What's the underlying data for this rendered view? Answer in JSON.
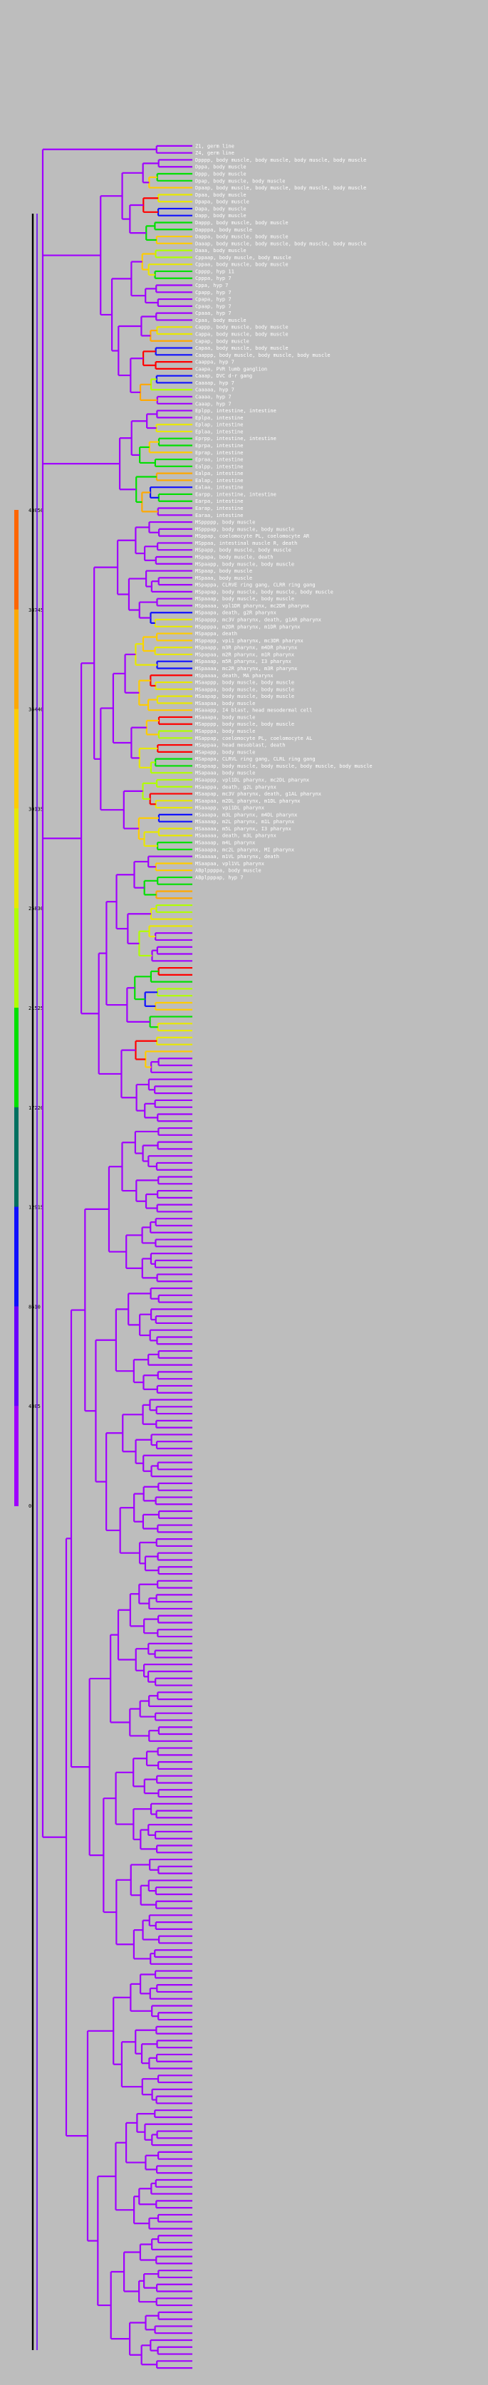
{
  "color_scale": {
    "ticks": [
      "43050",
      "38745",
      "34440",
      "30135",
      "25830",
      "21525",
      "17220",
      "12915",
      "8610",
      "4305",
      "0"
    ],
    "colors": [
      "#ff6600",
      "#ffa800",
      "#ffcc00",
      "#e8e800",
      "#b0ff00",
      "#00e000",
      "#007060",
      "#1010ff",
      "#6a00ff",
      "#a000ff",
      "#b020ff"
    ]
  },
  "leaves": [
    "Z1, germ line",
    "Z4, germ line",
    "Dpppp, body muscle, body muscle, body muscle, body muscle",
    "Dppa, body muscle",
    "Dppp, body muscle",
    "Dpap, body muscle, body muscle",
    "Dpaap, body muscle, body muscle, body muscle, body muscle",
    "Dpaa, body muscle",
    "Dpapa, body muscle",
    "Dapa, body muscle",
    "Dapp, body muscle",
    "Dappp, body muscle, body muscle",
    "Dapppa, body muscle",
    "Dappa, body muscle, body muscle",
    "Daaap, body muscle, body muscle, body muscle, body muscle",
    "Daaa, body muscle",
    "Cppaap, body muscle, body muscle",
    "Cppaa, body muscle, body muscle",
    "Cpppp, hyp 11",
    "Cpppa, hyp 7",
    "Cppa, hyp 7",
    "Cpapp, hyp 7",
    "Cpapa, hyp 7",
    "Cpaap, hyp 7",
    "Cpaaa, hyp 7",
    "Cpaa, body muscle",
    "Cappp, body muscle, body muscle",
    "Cappa, body muscle, body muscle",
    "Capap, body muscle",
    "Capaa, body muscle, body muscle",
    "Caappp, body muscle, body muscle, body muscle",
    "Caappa, hyp 7",
    "Caapa, PVR lumb ganglion",
    "Caaap, DVC d-r gang",
    "Caaaap, hyp 7",
    "Caaaaa, hyp 7",
    "Caaaa, hyp 7",
    "Caaap, hyp 7",
    "Eplpp, intestine, intestine",
    "Eplpa, intestine",
    "Eplap, intestine",
    "Eplaa, intestine",
    "Eprpp, intestine, intestine",
    "Eprpa, intestine",
    "Eprap, intestine",
    "Epraa, intestine",
    "Ealpp, intestine",
    "Ealpa, intestine",
    "Ealap, intestine",
    "Ealaa, intestine",
    "Earpp, intestine, intestine",
    "Earpa, intestine",
    "Earap, intestine",
    "Earaa, intestine",
    "MSppppp, body muscle",
    "MSpppap, body muscle, body muscle",
    "MSppap, coelomocyte PL, coelomocyte AR",
    "MSppaa, intestinal muscle R, death",
    "MSpapp, body muscle, body muscle",
    "MSpapa, body muscle, death",
    "MSpaapp, body muscle, body muscle",
    "MSpaap, body muscle",
    "MSpaaa, body muscle",
    "MSpappa, CLRVE ring gang, CLRR ring gang",
    "MSpapap, body muscle, body muscle, body muscle",
    "MSpaaap, body muscle, body muscle",
    "MSpaaaa, vpl1DR pharynx, mc2DR pharynx",
    "MSpaapa, death, g2R pharynx",
    "MSpappp, mc3V pharynx, death, g1AR pharynx",
    "MSppppa, m2DR pharynx, m1DR pharynx",
    "MSpappa, death",
    "MSppapp, vpi1 pharynx, mc3DR pharynx",
    "MSpaapp, m3R pharynx, m4DR pharynx",
    "MSpapaa, m2R pharynx, m1R pharynx",
    "MSpaaap, m5R pharynx, I3 pharynx",
    "MSpaaaa, mc2R pharynx, m3R pharynx",
    "MSpaaaa, death, MA pharynx",
    "MSaappp, body muscle, body muscle",
    "MSaappa, body muscle, body muscle",
    "MSaapap, body muscle, body muscle",
    "MSaapaa, body muscle",
    "MSaaapp, I4 blast, head mesodermal cell",
    "MSaaapa, body muscle",
    "MSapppp, body muscle, body muscle",
    "MSapppa, body muscle",
    "MSappap, coelomocyte PL, coelomocyte AL",
    "MSappaa, head mesoblast, death",
    "MSapapp, body muscle",
    "MSapapa, CLRVL ring gang, CLRL ring gang",
    "MSapaap, body muscle, body muscle, body muscle, body muscle",
    "MSapaaa, body muscle",
    "MSaappp, vpl1DL pharynx, mc2DL pharynx",
    "MSaappa, death, g2L pharynx",
    "MSaapap, mc3V pharynx, death, g1AL pharynx",
    "MSaapaa, m2DL pharynx, m1DL pharynx",
    "MSaaapp, vpi1DL pharynx",
    "MSaaapa, m3L pharynx, m4DL pharynx",
    "MSaaaap, m2L pharynx, m1L pharynx",
    "MSaaaaa, m5L pharynx, I3 pharynx",
    "MSaaaaa, death, m3L pharynx",
    "MSaaaap, m4L pharynx",
    "MSaaapa, mc2L pharynx, MI pharynx",
    "MSaaaaa, m1VL pharynx, death",
    "MSaapaa, vpl1VL pharynx",
    "ABplppppa, body muscle",
    "ABplpppap, hyp 7"
  ],
  "leaf_colors": {
    "Z1": "#a000ff"
  }
}
